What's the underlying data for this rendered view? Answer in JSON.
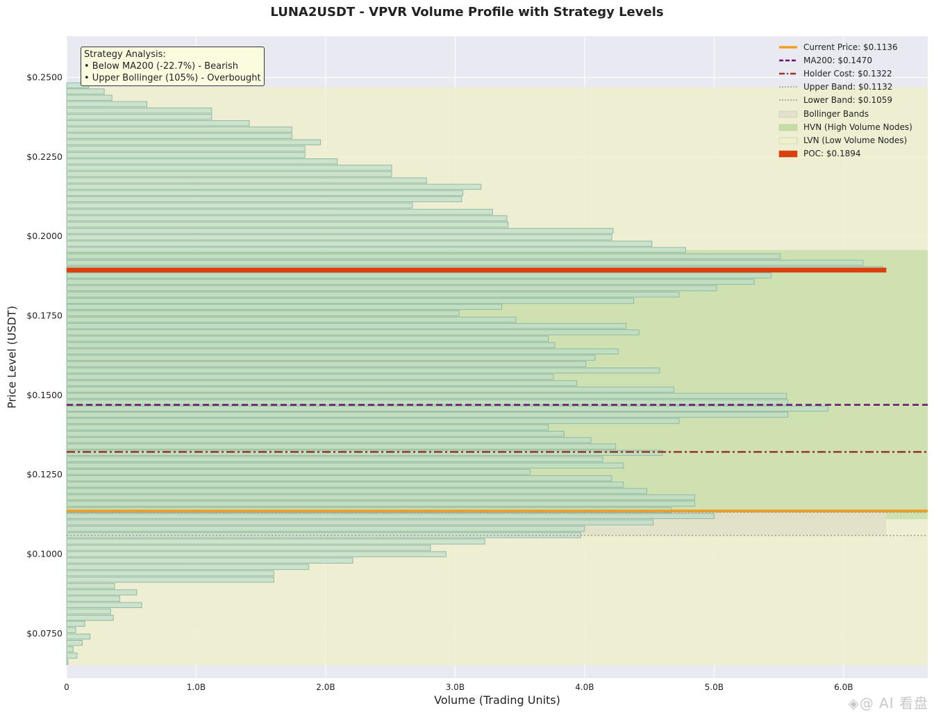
{
  "chart_data": {
    "type": "bar",
    "orientation": "horizontal",
    "title": "LUNA2USDT - VPVR Volume Profile with Strategy Levels",
    "xlabel": "Volume (Trading Units)",
    "ylabel": "Price Level (USDT)",
    "xlim": [
      0,
      6.65
    ],
    "ylim": [
      0.061,
      0.263
    ],
    "x_unit": "B",
    "x_ticks": [
      0,
      1.0,
      2.0,
      3.0,
      4.0,
      5.0,
      6.0
    ],
    "x_tick_labels": [
      "0",
      "1.0B",
      "2.0B",
      "3.0B",
      "4.0B",
      "5.0B",
      "6.0B"
    ],
    "y_ticks": [
      0.075,
      0.1,
      0.125,
      0.15,
      0.175,
      0.2,
      0.225,
      0.25
    ],
    "y_tick_labels": [
      "$0.0750",
      "$0.1000",
      "$0.1250",
      "$0.1500",
      "$0.1750",
      "$0.2000",
      "$0.2250",
      "$0.2500"
    ],
    "grid": true,
    "legend_position": "top-right",
    "price_levels": [
      0.0661,
      0.0681,
      0.0701,
      0.0721,
      0.0741,
      0.0761,
      0.0781,
      0.08,
      0.082,
      0.084,
      0.086,
      0.088,
      0.09,
      0.092,
      0.094,
      0.096,
      0.098,
      0.1,
      0.102,
      0.104,
      0.106,
      0.108,
      0.11,
      0.112,
      0.1139,
      0.1159,
      0.1179,
      0.1199,
      0.1219,
      0.1239,
      0.1259,
      0.1279,
      0.1299,
      0.1319,
      0.1339,
      0.1359,
      0.1379,
      0.1399,
      0.1419,
      0.1439,
      0.1458,
      0.1478,
      0.1498,
      0.1518,
      0.1538,
      0.1558,
      0.1578,
      0.1598,
      0.1618,
      0.1638,
      0.1658,
      0.1678,
      0.1698,
      0.1718,
      0.1738,
      0.1758,
      0.1778,
      0.1797,
      0.1817,
      0.1837,
      0.1857,
      0.1877,
      0.1897,
      0.1917,
      0.1937,
      0.1957,
      0.1977,
      0.1997,
      0.2017,
      0.2037,
      0.2057,
      0.2077,
      0.2097,
      0.2117,
      0.2136,
      0.2156,
      0.2176,
      0.2196,
      0.2216,
      0.2236,
      0.2256,
      0.2276,
      0.2296,
      0.2316,
      0.2336,
      0.2356,
      0.2376,
      0.2396,
      0.2416,
      0.2436,
      0.2456,
      0.2475
    ],
    "volumes": [
      0.01,
      0.08,
      0.05,
      0.12,
      0.18,
      0.07,
      0.14,
      0.36,
      0.34,
      0.58,
      0.41,
      0.54,
      0.37,
      1.6,
      1.6,
      1.87,
      2.21,
      2.93,
      2.81,
      3.23,
      3.97,
      4.0,
      4.53,
      5.0,
      4.67,
      4.85,
      4.85,
      4.48,
      4.3,
      4.21,
      3.58,
      4.3,
      4.14,
      4.6,
      4.24,
      4.05,
      3.84,
      3.72,
      4.73,
      5.57,
      5.88,
      5.57,
      5.56,
      4.69,
      3.94,
      3.76,
      4.58,
      4.01,
      4.08,
      4.26,
      3.77,
      3.72,
      4.42,
      4.32,
      3.47,
      3.03,
      3.36,
      4.38,
      4.73,
      5.02,
      5.31,
      5.44,
      6.3,
      6.15,
      5.51,
      4.78,
      4.52,
      4.21,
      4.22,
      3.41,
      3.4,
      3.29,
      2.67,
      3.05,
      3.06,
      3.2,
      2.78,
      2.51,
      2.51,
      2.09,
      1.84,
      1.84,
      1.96,
      1.74,
      1.74,
      1.41,
      1.12,
      1.12,
      0.62,
      0.35,
      0.29,
      0.17
    ],
    "hvn_zone": [
      0.111,
      0.1957
    ],
    "bollinger_bands": [
      0.1059,
      0.1132
    ],
    "background_zone": [
      0.065,
      0.2469
    ],
    "poc": {
      "price": 0.1894,
      "volume": 6.33
    },
    "levels": [
      {
        "label": "Current Price: $0.1136",
        "value": 0.1136,
        "color": "#f0a020",
        "style": "solid"
      },
      {
        "label": "MA200: $0.1470",
        "value": 0.147,
        "color": "#6a1070",
        "style": "dashed"
      },
      {
        "label": "Holder Cost: $0.1322",
        "value": 0.1322,
        "color": "#9a3324",
        "style": "dashdot"
      },
      {
        "label": "Upper Band: $0.1132",
        "value": 0.1132,
        "color": "#9a9a88",
        "style": "dotted"
      },
      {
        "label": "Lower Band: $0.1059",
        "value": 0.1059,
        "color": "#9a9a88",
        "style": "dotted"
      }
    ],
    "legend": [
      {
        "label": "Current Price: $0.1136",
        "kind": "line",
        "color": "#f0a020",
        "style": "solid"
      },
      {
        "label": "MA200: $0.1470",
        "kind": "line",
        "color": "#6a1070",
        "style": "dashed"
      },
      {
        "label": "Holder Cost: $0.1322",
        "kind": "line",
        "color": "#9a3324",
        "style": "dashdot"
      },
      {
        "label": "Upper Band: $0.1132",
        "kind": "line",
        "color": "#9a9a88",
        "style": "dotted"
      },
      {
        "label": "Lower Band: $0.1059",
        "kind": "line",
        "color": "#9a9a88",
        "style": "dotted"
      },
      {
        "label": "Bollinger Bands",
        "kind": "patch",
        "color": "#e2e2cc"
      },
      {
        "label": "HVN (High Volume Nodes)",
        "kind": "patch",
        "color": "#c6dda6"
      },
      {
        "label": "LVN (Low Volume Nodes)",
        "kind": "patch",
        "color": "#f0f0cc"
      },
      {
        "label": "POC: $0.1894",
        "kind": "patch",
        "color": "#d9400f"
      }
    ],
    "annotation": {
      "title": "Strategy Analysis:",
      "lines": [
        "• Below MA200 (-22.7%) - Bearish",
        "• Upper Bollinger (105%) - Overbought"
      ]
    },
    "colors": {
      "plot_background": "#e9e9f2",
      "lvn_fill": "#eeeecc",
      "hvn_fill": "#cbdfad",
      "bollinger_fill": "#e0e0c8",
      "bar_fill": "#bcdcc8",
      "bar_edge": "#8fb8a4"
    }
  },
  "watermark": "◈@ AI 看盘"
}
